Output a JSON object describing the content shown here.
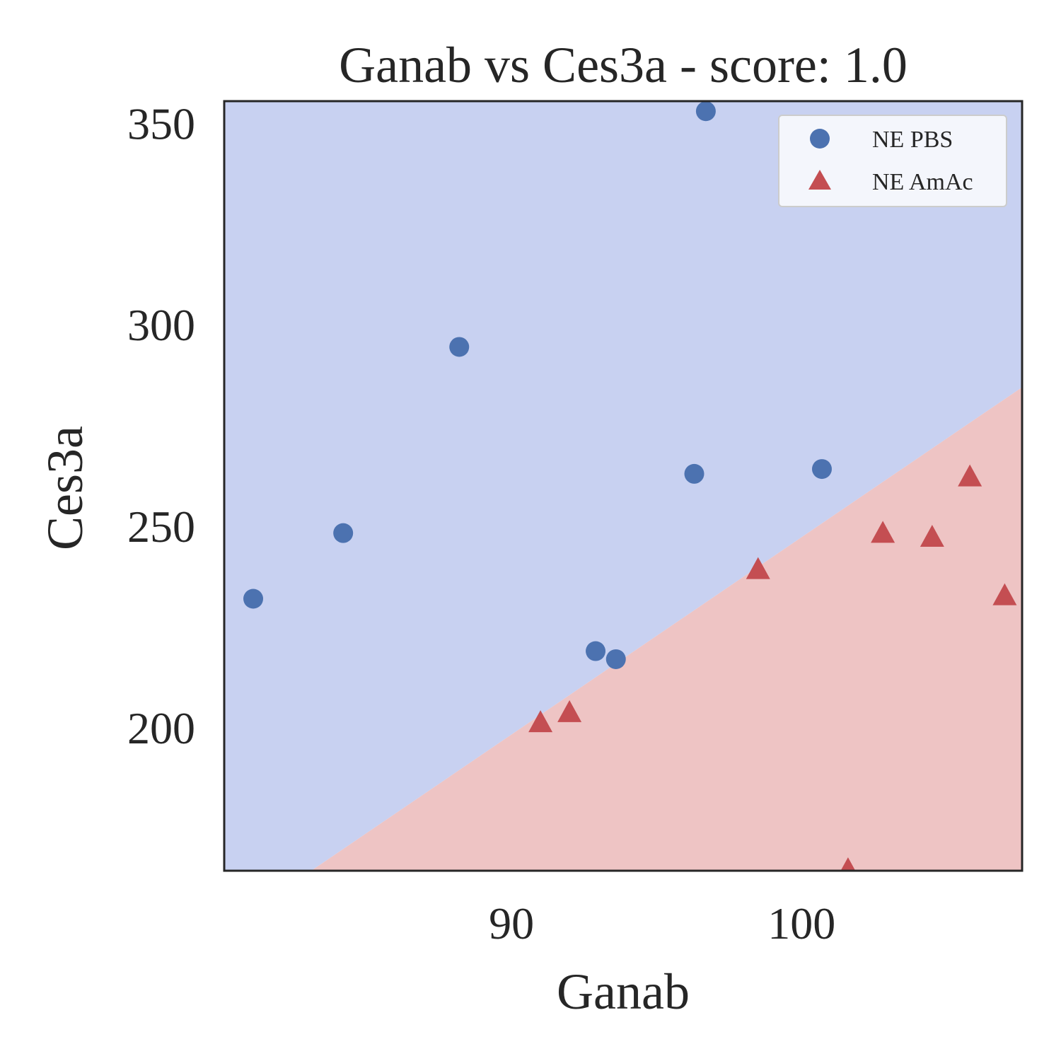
{
  "chart_data": {
    "type": "scatter",
    "title": "Ganab vs Ces3a - score: 1.0",
    "xlabel": "Ganab",
    "ylabel": "Ces3a",
    "xlim": [
      80.1,
      107.6
    ],
    "ylim": [
      164.5,
      355.5
    ],
    "xticks": [
      90,
      100
    ],
    "yticks": [
      200,
      250,
      300,
      350
    ],
    "grid": false,
    "legend_position": "top-right",
    "regions": [
      {
        "label": "NE PBS",
        "color": "#c8d1f1"
      },
      {
        "label": "NE AmAc",
        "color": "#eec4c4"
      }
    ],
    "decision_boundary": [
      [
        83.1,
        164.5
      ],
      [
        107.6,
        284.5
      ]
    ],
    "series": [
      {
        "name": "NE PBS",
        "marker": "circle",
        "color": "#4c72b0",
        "points": [
          [
            81.1,
            232.0
          ],
          [
            84.2,
            248.3
          ],
          [
            88.2,
            294.5
          ],
          [
            92.9,
            219.0
          ],
          [
            93.6,
            217.0
          ],
          [
            96.3,
            263.0
          ],
          [
            96.7,
            353.0
          ],
          [
            100.7,
            264.2
          ]
        ]
      },
      {
        "name": "NE AmAc",
        "marker": "triangle",
        "color": "#c44e52",
        "points": [
          [
            91.0,
            201.0
          ],
          [
            92.0,
            203.5
          ],
          [
            98.5,
            239.0
          ],
          [
            101.6,
            164.5
          ],
          [
            102.8,
            248.0
          ],
          [
            104.5,
            247.0
          ],
          [
            105.8,
            262.0
          ],
          [
            107.0,
            232.5
          ]
        ]
      }
    ]
  }
}
